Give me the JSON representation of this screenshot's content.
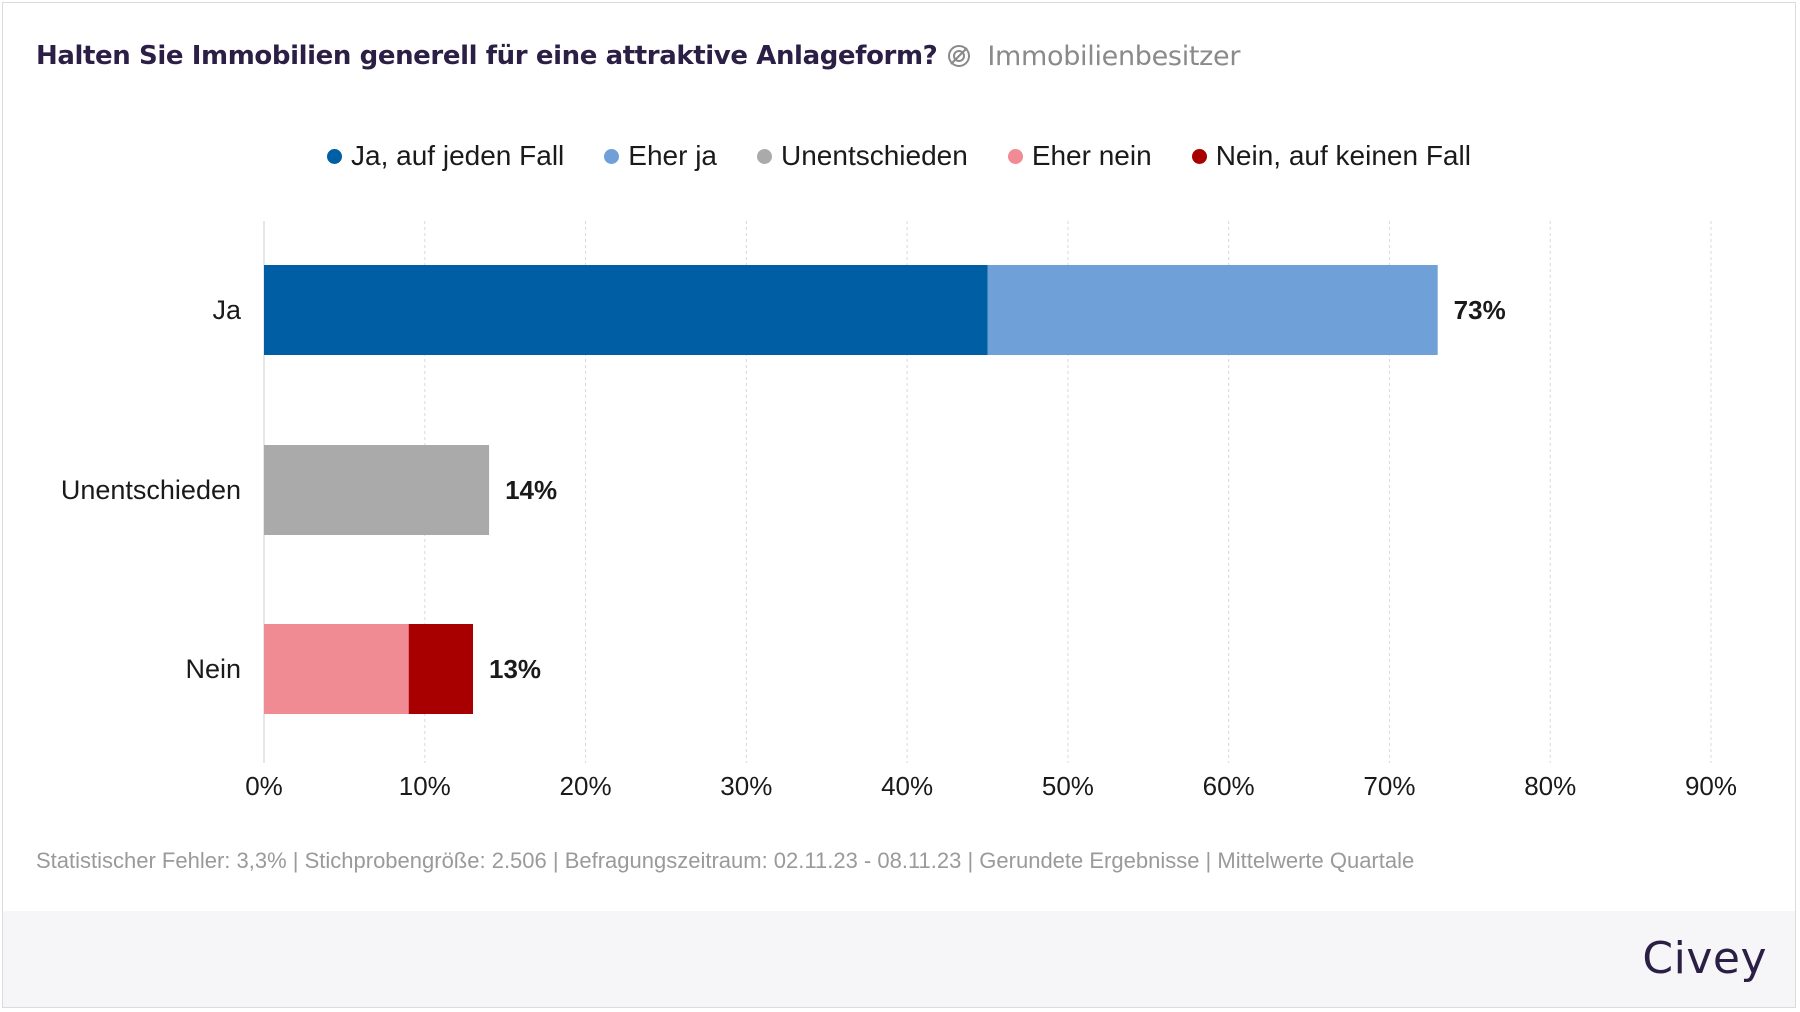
{
  "header": {
    "title": "Halten Sie Immobilien generell für eine attraktive Anlageform?",
    "panel_icon": "panel-filter-icon",
    "panel_label": "Immobilienbesitzer"
  },
  "chart_data": {
    "type": "bar",
    "orientation": "horizontal",
    "stacked": true,
    "categories": [
      "Ja",
      "Unentschieden",
      "Nein"
    ],
    "series": [
      {
        "name": "Ja, auf jeden Fall",
        "color": "#005ea5",
        "values": [
          45,
          0,
          0
        ]
      },
      {
        "name": "Eher ja",
        "color": "#6fa1d8",
        "values": [
          28,
          0,
          0
        ]
      },
      {
        "name": "Unentschieden",
        "color": "#aaaaaa",
        "values": [
          0,
          14,
          0
        ]
      },
      {
        "name": "Eher nein",
        "color": "#f08a93",
        "values": [
          0,
          0,
          9
        ]
      },
      {
        "name": "Nein, auf keinen Fall",
        "color": "#a80000",
        "values": [
          0,
          0,
          4
        ]
      }
    ],
    "totals": [
      "73%",
      "14%",
      "13%"
    ],
    "xlim": [
      0,
      90
    ],
    "xticks": [
      "0%",
      "10%",
      "20%",
      "30%",
      "40%",
      "50%",
      "60%",
      "70%",
      "80%",
      "90%"
    ],
    "grid": true,
    "legend_position": "top-center"
  },
  "footer": {
    "text": "Statistischer Fehler: 3,3% | Stichprobengröße: 2.506 | Befragungszeitraum: 02.11.23 - 08.11.23 | Gerundete Ergebnisse | Mittelwerte Quartale",
    "brand": "Civey"
  }
}
